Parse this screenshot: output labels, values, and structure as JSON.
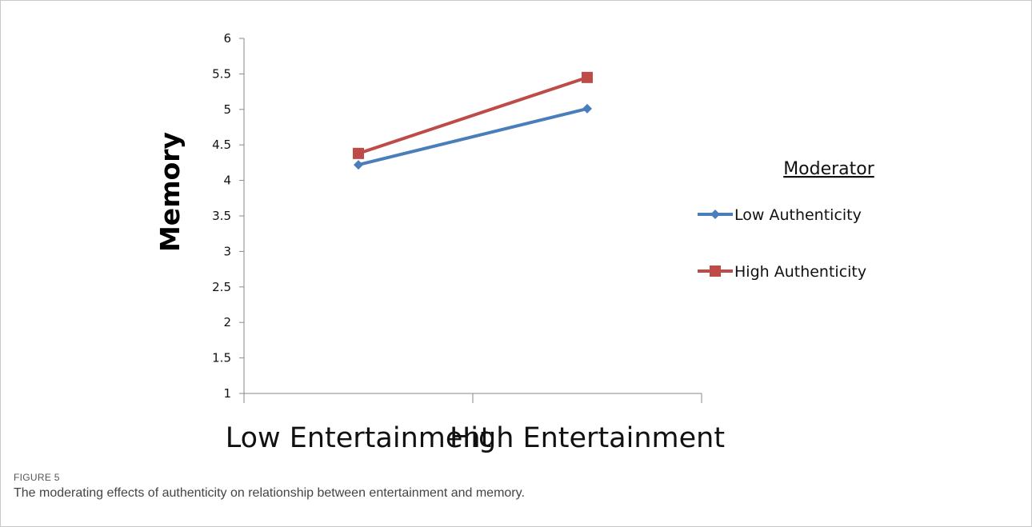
{
  "figure": {
    "number": "FIGURE 5",
    "caption": "The moderating effects of authenticity on relationship between entertainment and memory."
  },
  "chart_data": {
    "type": "line",
    "categories": [
      "Low Entertainment",
      "High Entertainment"
    ],
    "ylabel": "Memory",
    "xlabel": "",
    "ylim": [
      1,
      6
    ],
    "yticks": [
      "1",
      "1.5",
      "2",
      "2.5",
      "3",
      "3.5",
      "4",
      "4.5",
      "5",
      "5.5",
      "6"
    ],
    "grid": false,
    "legend": {
      "title": "Moderator",
      "position": "right"
    },
    "series": [
      {
        "name": "Low Authenticity",
        "values": [
          4.22,
          5.01
        ],
        "color": "#4a7ebb",
        "marker": "diamond"
      },
      {
        "name": "High Authenticity",
        "values": [
          4.38,
          5.45
        ],
        "color": "#be4b48",
        "marker": "square"
      }
    ]
  }
}
